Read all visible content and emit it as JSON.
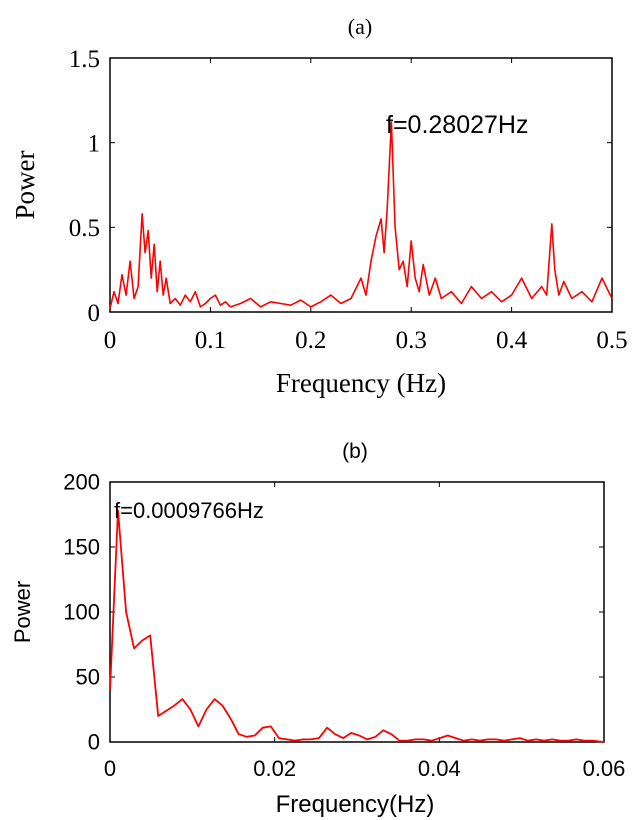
{
  "chart_data": [
    {
      "type": "line",
      "title": "(a)",
      "xlabel": "Frequency (Hz)",
      "ylabel": "Power",
      "xlim": [
        0,
        0.5
      ],
      "ylim": [
        0,
        1.5
      ],
      "xticks": [
        "0",
        "0.1",
        "0.2",
        "0.3",
        "0.4",
        "0.5"
      ],
      "yticks": [
        "0",
        "0.5",
        "1",
        "1.5"
      ],
      "annotation": {
        "text": "f=0.28027Hz",
        "x": 0.28027,
        "y": 1.12
      },
      "series": [
        {
          "color": "#ff0000",
          "x": [
            0.0,
            0.004,
            0.008,
            0.012,
            0.016,
            0.02,
            0.024,
            0.028,
            0.032,
            0.035,
            0.038,
            0.041,
            0.044,
            0.047,
            0.05,
            0.053,
            0.056,
            0.06,
            0.065,
            0.07,
            0.075,
            0.08,
            0.085,
            0.09,
            0.095,
            0.1,
            0.105,
            0.11,
            0.115,
            0.12,
            0.13,
            0.14,
            0.15,
            0.16,
            0.17,
            0.18,
            0.19,
            0.2,
            0.21,
            0.22,
            0.23,
            0.24,
            0.25,
            0.255,
            0.26,
            0.265,
            0.27,
            0.273,
            0.276,
            0.28027,
            0.284,
            0.288,
            0.292,
            0.296,
            0.3,
            0.304,
            0.308,
            0.312,
            0.318,
            0.324,
            0.33,
            0.34,
            0.35,
            0.36,
            0.37,
            0.38,
            0.39,
            0.4,
            0.41,
            0.42,
            0.43,
            0.435,
            0.44,
            0.443,
            0.447,
            0.452,
            0.46,
            0.47,
            0.48,
            0.49,
            0.5
          ],
          "y": [
            0.02,
            0.12,
            0.05,
            0.22,
            0.1,
            0.3,
            0.08,
            0.15,
            0.58,
            0.35,
            0.48,
            0.2,
            0.4,
            0.12,
            0.3,
            0.1,
            0.2,
            0.05,
            0.08,
            0.04,
            0.1,
            0.06,
            0.12,
            0.03,
            0.05,
            0.08,
            0.1,
            0.04,
            0.06,
            0.03,
            0.05,
            0.08,
            0.03,
            0.06,
            0.05,
            0.04,
            0.07,
            0.03,
            0.06,
            0.1,
            0.05,
            0.08,
            0.2,
            0.1,
            0.3,
            0.45,
            0.55,
            0.35,
            0.6,
            1.12,
            0.5,
            0.25,
            0.3,
            0.15,
            0.42,
            0.2,
            0.12,
            0.28,
            0.1,
            0.2,
            0.08,
            0.12,
            0.05,
            0.15,
            0.08,
            0.12,
            0.06,
            0.1,
            0.2,
            0.08,
            0.15,
            0.1,
            0.52,
            0.25,
            0.1,
            0.18,
            0.08,
            0.12,
            0.06,
            0.2,
            0.08
          ]
        }
      ]
    },
    {
      "type": "line",
      "title": "(b)",
      "xlabel": "Frequency(Hz)",
      "ylabel": "Power",
      "xlim": [
        0,
        0.06
      ],
      "ylim": [
        0,
        200
      ],
      "xticks": [
        "0",
        "0.02",
        "0.04",
        "0.06"
      ],
      "yticks": [
        "0",
        "50",
        "100",
        "150",
        "200"
      ],
      "annotation": {
        "text": "f=0.0009766Hz",
        "x": 0.0009766,
        "y": 178
      },
      "series": [
        {
          "color": "#ff0000",
          "x": [
            0.0,
            0.0009766,
            0.00195,
            0.00293,
            0.0039,
            0.00488,
            0.00586,
            0.00684,
            0.00781,
            0.00879,
            0.00977,
            0.01074,
            0.01172,
            0.0127,
            0.01367,
            0.01465,
            0.01563,
            0.0166,
            0.01758,
            0.01855,
            0.01953,
            0.02051,
            0.02148,
            0.02246,
            0.02344,
            0.02441,
            0.02539,
            0.02637,
            0.02734,
            0.02832,
            0.0293,
            0.03027,
            0.03125,
            0.03223,
            0.0332,
            0.03418,
            0.03516,
            0.03613,
            0.03711,
            0.03809,
            0.03906,
            0.04004,
            0.04102,
            0.04199,
            0.04297,
            0.04395,
            0.04492,
            0.0459,
            0.04688,
            0.04785,
            0.04883,
            0.0498,
            0.05078,
            0.05176,
            0.05273,
            0.05371,
            0.05469,
            0.05566,
            0.05664,
            0.05762,
            0.05859,
            0.06
          ],
          "y": [
            40,
            178,
            100,
            72,
            78,
            82,
            20,
            24,
            28,
            33,
            25,
            12,
            25,
            33,
            28,
            18,
            6,
            4,
            5,
            11,
            12,
            3,
            2,
            1,
            2,
            2,
            3,
            11,
            6,
            3,
            7,
            5,
            2,
            4,
            9,
            6,
            1,
            1,
            2,
            2,
            1,
            3,
            5,
            3,
            1,
            2,
            1,
            2,
            2,
            1,
            2,
            3,
            1,
            2,
            1,
            2,
            1,
            1,
            2,
            1,
            1,
            0
          ]
        }
      ]
    }
  ]
}
